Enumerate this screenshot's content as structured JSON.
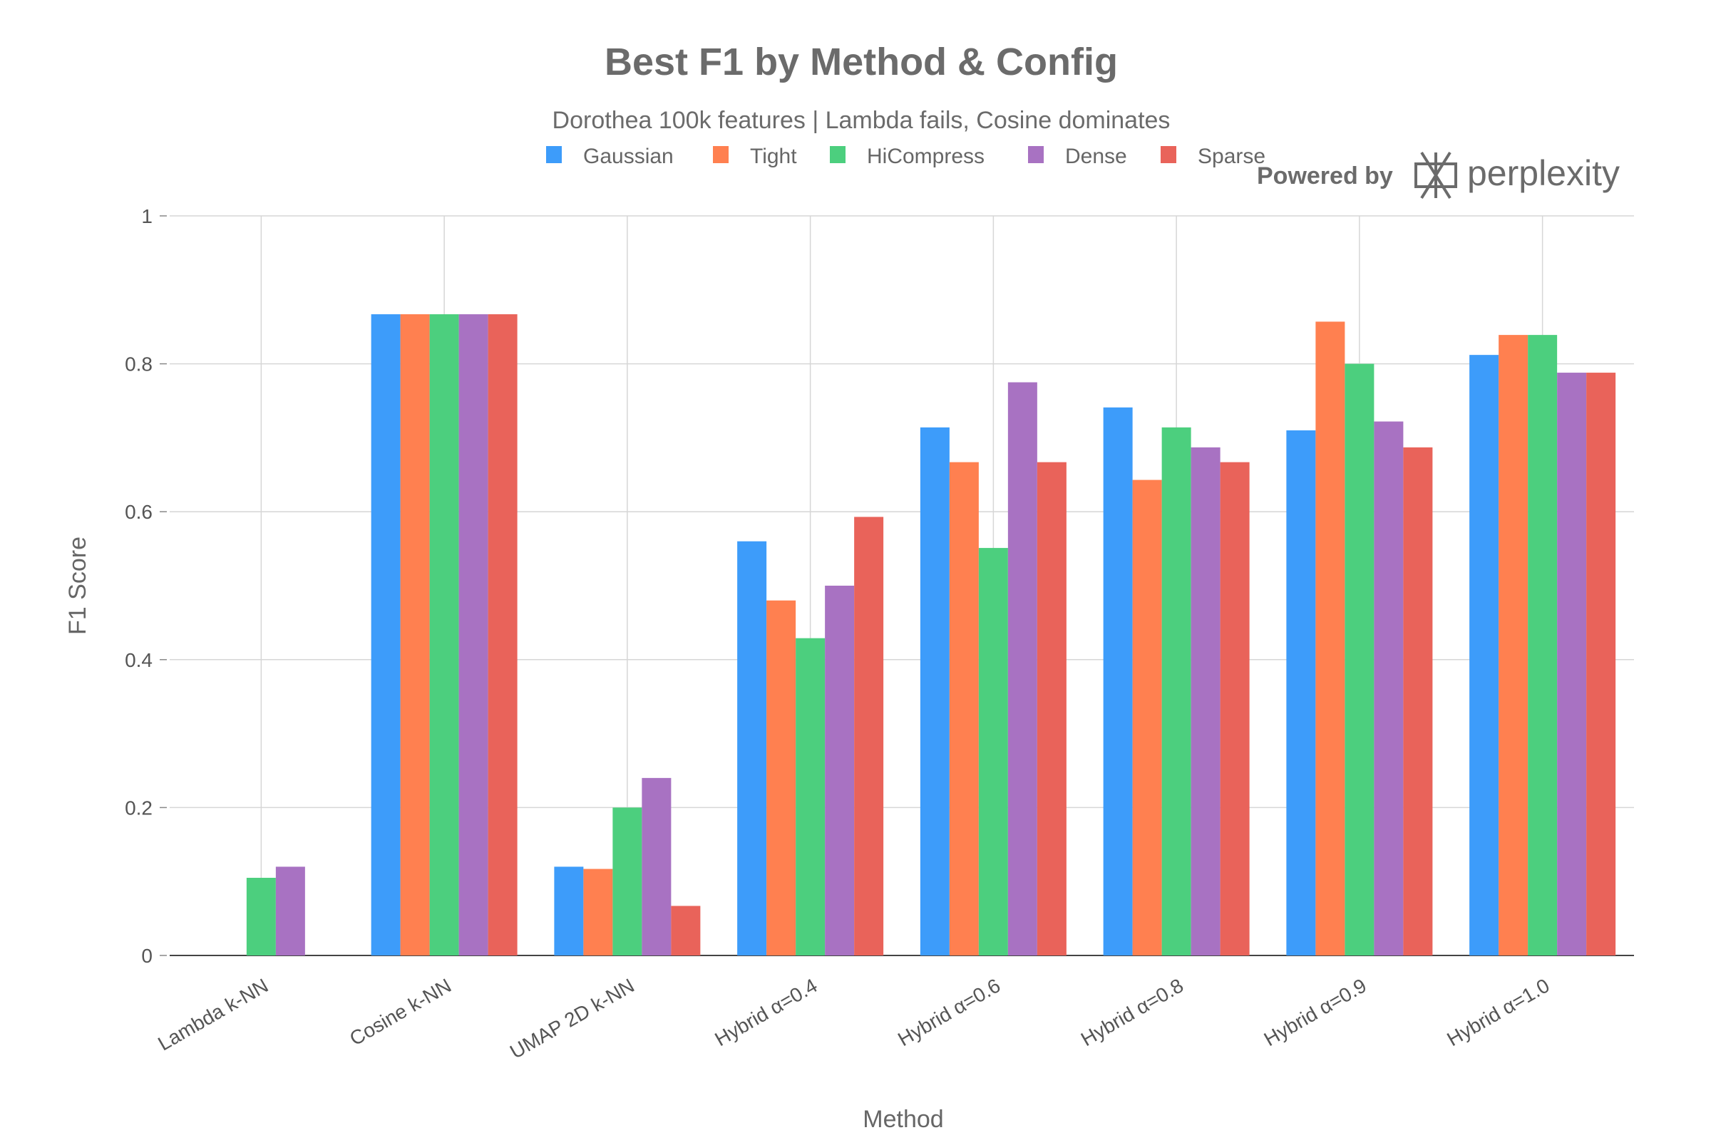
{
  "chart_data": {
    "type": "bar",
    "title": "Best F1 by Method & Config",
    "subtitle": "Dorothea 100k features | Lambda fails, Cosine dominates",
    "xlabel": "Method",
    "ylabel": "F1 Score",
    "ylim": [
      0,
      1
    ],
    "yticks": [
      "0",
      "0.2",
      "0.4",
      "0.6",
      "0.8",
      "1"
    ],
    "grid": true,
    "legend_position": "top",
    "categories": [
      "Lambda k-NN",
      "Cosine k-NN",
      "UMAP 2D k-NN",
      "Hybrid α=0.4",
      "Hybrid α=0.6",
      "Hybrid α=0.8",
      "Hybrid α=0.9",
      "Hybrid α=1.0"
    ],
    "series": [
      {
        "name": "Gaussian",
        "color": "#3D9CFA",
        "values": [
          0,
          0.867,
          0.12,
          0.56,
          0.714,
          0.741,
          0.71,
          0.812
        ]
      },
      {
        "name": "Tight",
        "color": "#FF8050",
        "values": [
          0,
          0.867,
          0.117,
          0.48,
          0.667,
          0.643,
          0.857,
          0.839
        ]
      },
      {
        "name": "HiCompress",
        "color": "#4CCF7E",
        "values": [
          0.105,
          0.867,
          0.2,
          0.429,
          0.551,
          0.714,
          0.8,
          0.839
        ]
      },
      {
        "name": "Dense",
        "color": "#A872C2",
        "values": [
          0.12,
          0.867,
          0.24,
          0.5,
          0.775,
          0.687,
          0.722,
          0.788
        ]
      },
      {
        "name": "Sparse",
        "color": "#E9635A",
        "values": [
          0,
          0.867,
          0.067,
          0.593,
          0.667,
          0.667,
          0.687,
          0.788
        ]
      }
    ]
  },
  "branding": {
    "powered_by": "Powered by",
    "brand": "perplexity"
  }
}
